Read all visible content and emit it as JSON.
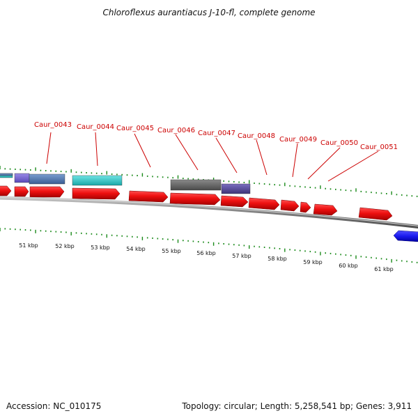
{
  "title": "Chloroflexus aurantiacus J-10-fl, complete genome",
  "footer": {
    "accession": "Accession: NC_010175",
    "summary": "Topology: circular; Length: 5,258,541 bp; Genes: 3,911"
  },
  "colors": {
    "cds": "#ee1111",
    "cds_reverse": "#1a1aee",
    "tick": "#1a8a1a",
    "backbone": "#808080",
    "label": "#cc0000",
    "feature_cyan": "#28c8c8",
    "feature_steelblue": "#4f79b5",
    "feature_gray": "#6a6a6a",
    "feature_purple": "#5a4e9a"
  },
  "gene_labels": [
    "Caur_0043",
    "Caur_0044",
    "Caur_0045",
    "Caur_0046",
    "Caur_0047",
    "Caur_0048",
    "Caur_0049",
    "Caur_0050",
    "Caur_0051"
  ],
  "kbp_labels": [
    "51 kbp",
    "52 kbp",
    "53 kbp",
    "54 kbp",
    "55 kbp",
    "56 kbp",
    "57 kbp",
    "58 kbp",
    "59 kbp",
    "60 kbp",
    "61 kbp"
  ]
}
